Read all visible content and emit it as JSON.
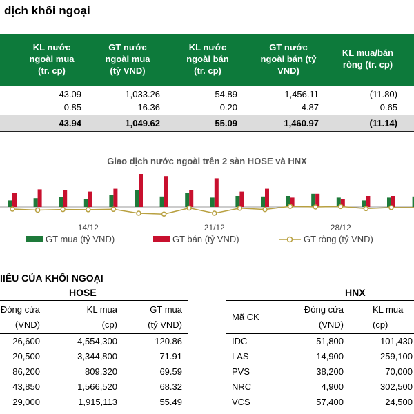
{
  "title": "dịch khối ngoại",
  "summary_table": {
    "headers": [
      "KL nước\nngoài mua\n(tr. cp)",
      "GT nước\nngoài mua\n(tỷ VND)",
      "KL nước\nngoài bán\n(tr. cp)",
      "GT nước\nngoài bán (tỷ\nVND)",
      "KL mua/bán\nròng (tr. cp)"
    ],
    "rows": [
      [
        "43.09",
        "1,033.26",
        "54.89",
        "1,456.11",
        "(11.80)"
      ],
      [
        "0.85",
        "16.36",
        "0.20",
        "4.87",
        "0.65"
      ]
    ],
    "total": [
      "43.94",
      "1,049.62",
      "55.09",
      "1,460.97",
      "(11.14)"
    ]
  },
  "chart_data": {
    "type": "bar",
    "title": "Giao dịch nước ngoài trên 2 sàn HOSE và HNX",
    "x_tick_labels": [
      "14/12",
      "21/12",
      "28/12"
    ],
    "series": [
      {
        "name": "GT mua (tỷ VND)",
        "color": "#1e7a3a",
        "values": [
          120,
          160,
          180,
          150,
          220,
          300,
          190,
          250,
          170,
          200,
          190,
          200,
          240,
          170,
          120,
          170,
          190,
          200,
          160,
          150,
          150,
          140
        ]
      },
      {
        "name": "GT bán (tỷ VND)",
        "color": "#c8102e",
        "values": [
          260,
          320,
          300,
          280,
          330,
          600,
          560,
          300,
          520,
          280,
          330,
          170,
          240,
          150,
          200,
          200,
          220,
          160,
          140,
          160,
          170,
          190
        ]
      },
      {
        "name": "GT ròng (tỷ VND)",
        "color": "#b8a040",
        "values": [
          -100,
          -150,
          -120,
          -130,
          -110,
          -300,
          -340,
          -50,
          -300,
          -60,
          -120,
          30,
          0,
          20,
          -80,
          -30,
          -30,
          40,
          20,
          -10,
          -20,
          -50
        ]
      }
    ]
  },
  "section_title": "IIÊU CỦA KHỐI NGOẠI",
  "hose": {
    "title": "HOSE",
    "headers": [
      "Đóng cửa\n(VND)",
      "KL mua\n(cp)",
      "GT mua\n(tỷ VND)"
    ],
    "rows": [
      [
        "26,600",
        "4,554,300",
        "120.86"
      ],
      [
        "20,500",
        "3,344,800",
        "71.91"
      ],
      [
        "86,200",
        "809,320",
        "69.59"
      ],
      [
        "43,850",
        "1,566,520",
        "68.32"
      ],
      [
        "29,000",
        "1,915,113",
        "55.49"
      ]
    ]
  },
  "hnx": {
    "title": "HNX",
    "headers": [
      "Mã CK",
      "Đóng cửa\n(VND)",
      "KL mua\n(cp)"
    ],
    "rows": [
      [
        "IDC",
        "51,800",
        "101,430"
      ],
      [
        "LAS",
        "14,900",
        "259,100"
      ],
      [
        "PVS",
        "38,200",
        "70,000"
      ],
      [
        "NRC",
        "4,900",
        "302,500"
      ],
      [
        "VCS",
        "57,400",
        "24,500"
      ]
    ]
  }
}
